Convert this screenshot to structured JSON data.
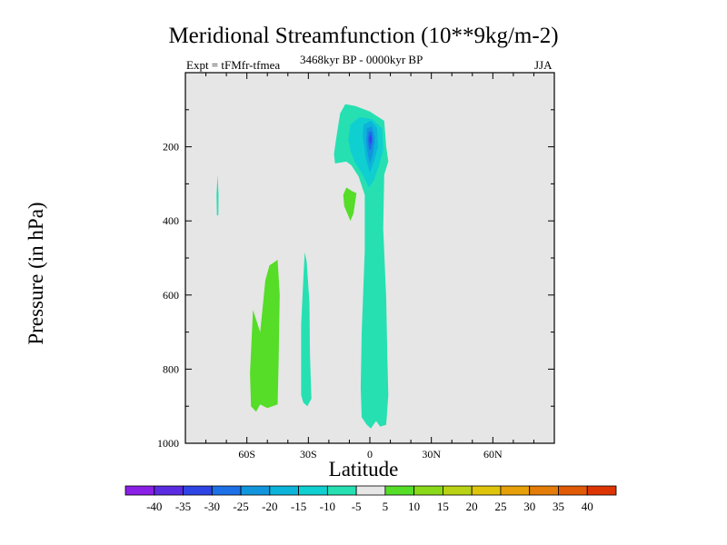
{
  "chart_data": {
    "type": "contour",
    "title": "Meridional Streamfunction (10**9kg/m-2)",
    "experiment_label": "Expt = tFMfr-tfmea",
    "time_range": "3468kyr BP - 0000kyr BP",
    "season": "JJA",
    "xlabel": "Latitude",
    "ylabel": "Pressure (in hPa)",
    "xlim": [
      -90,
      90
    ],
    "ylim": [
      1000,
      0
    ],
    "x_ticks": [
      {
        "value": -60,
        "label": "60S"
      },
      {
        "value": -30,
        "label": "30S"
      },
      {
        "value": 0,
        "label": "0"
      },
      {
        "value": 30,
        "label": "30N"
      },
      {
        "value": 60,
        "label": "60N"
      }
    ],
    "y_ticks": [
      {
        "value": 200,
        "label": "200"
      },
      {
        "value": 400,
        "label": "400"
      },
      {
        "value": 600,
        "label": "600"
      },
      {
        "value": 800,
        "label": "800"
      },
      {
        "value": 1000,
        "label": "1000"
      }
    ],
    "colorbar": {
      "levels": [
        -40,
        -35,
        -30,
        -25,
        -20,
        -15,
        -10,
        -5,
        5,
        10,
        15,
        20,
        25,
        30,
        35,
        40
      ],
      "labels": [
        "-40",
        "-35",
        "-30",
        "-25",
        "-20",
        "-15",
        "-10",
        "-5",
        "5",
        "10",
        "15",
        "20",
        "25",
        "30",
        "35",
        "40"
      ],
      "colors": [
        "#8a1fe6",
        "#5a2be0",
        "#2f44e4",
        "#1d70e6",
        "#1196de",
        "#0cb4d9",
        "#10cfd0",
        "#26e0b2",
        "#e6e6e6",
        "#55dd28",
        "#8ad81a",
        "#bad215",
        "#dfc40c",
        "#e6a10a",
        "#e37c08",
        "#e15a06",
        "#dd3404"
      ]
    },
    "regions": [
      {
        "name": "sh-positive-lower",
        "level": "5 to 10",
        "color": "#55dd28",
        "points": [
          [
            -55.5,
            915
          ],
          [
            -58,
            900
          ],
          [
            -58.5,
            810
          ],
          [
            -57,
            640
          ],
          [
            -53.5,
            700
          ],
          [
            -51,
            560
          ],
          [
            -49,
            520
          ],
          [
            -45,
            505
          ],
          [
            -44,
            600
          ],
          [
            -44.5,
            780
          ],
          [
            -45,
            895
          ],
          [
            -50,
            905
          ],
          [
            -53.5,
            895
          ]
        ]
      },
      {
        "name": "sh-negative-column",
        "level": "-10 to -5",
        "color": "#26e0b2",
        "points": [
          [
            -30.5,
            900
          ],
          [
            -32.5,
            890
          ],
          [
            -33.5,
            870
          ],
          [
            -33.5,
            680
          ],
          [
            -32.5,
            560
          ],
          [
            -31.8,
            485
          ],
          [
            -30.8,
            510
          ],
          [
            -29.5,
            620
          ],
          [
            -29.2,
            760
          ],
          [
            -28.5,
            880
          ]
        ]
      },
      {
        "name": "polar-negative-sliver",
        "level": "-10 to -5",
        "color": "#26e0b2",
        "points": [
          [
            -74.6,
            385
          ],
          [
            -74.8,
            330
          ],
          [
            -74.3,
            275
          ],
          [
            -73.8,
            330
          ],
          [
            -73.9,
            385
          ]
        ]
      },
      {
        "name": "tropical-positive-blob",
        "level": "5 to 10",
        "color": "#55dd28",
        "points": [
          [
            -12.5,
            360
          ],
          [
            -13,
            330
          ],
          [
            -11.5,
            310
          ],
          [
            -8.5,
            320
          ],
          [
            -6.5,
            325
          ],
          [
            -8,
            380
          ],
          [
            -9.5,
            400
          ]
        ]
      },
      {
        "name": "equatorial-negative-outer",
        "level": "-10 to -5",
        "color": "#26e0b2",
        "points": [
          [
            -17,
            245
          ],
          [
            -17.5,
            220
          ],
          [
            -16.5,
            180
          ],
          [
            -14.5,
            110
          ],
          [
            -12,
            85
          ],
          [
            -7,
            90
          ],
          [
            0,
            105
          ],
          [
            7,
            130
          ],
          [
            8,
            200
          ],
          [
            9,
            240
          ],
          [
            7,
            275
          ],
          [
            6.5,
            420
          ],
          [
            8,
            610
          ],
          [
            8.5,
            760
          ],
          [
            9,
            870
          ],
          [
            8,
            950
          ],
          [
            5,
            955
          ],
          [
            3,
            940
          ],
          [
            0.5,
            960
          ],
          [
            -1.5,
            950
          ],
          [
            -4,
            930
          ],
          [
            -4.5,
            850
          ],
          [
            -4,
            700
          ],
          [
            -2.5,
            480
          ],
          [
            -2.5,
            330
          ],
          [
            -5.5,
            280
          ],
          [
            -9,
            250
          ],
          [
            -11.5,
            240
          ]
        ]
      },
      {
        "name": "equatorial-negative-inner",
        "level": "-15 to -10",
        "color": "#10cfd0",
        "points": [
          [
            -10.5,
            180
          ],
          [
            -9.5,
            140
          ],
          [
            -5,
            120
          ],
          [
            1,
            125
          ],
          [
            6,
            150
          ],
          [
            6.5,
            210
          ],
          [
            4.5,
            250
          ],
          [
            2,
            290
          ],
          [
            -0.5,
            310
          ],
          [
            -3.5,
            275
          ],
          [
            -7.5,
            240
          ],
          [
            -9.5,
            210
          ]
        ]
      },
      {
        "name": "upper-core-level-20",
        "level": "-20 to -15",
        "color": "#0cb4d9",
        "points": [
          [
            -3.5,
            170
          ],
          [
            -3,
            140
          ],
          [
            0.5,
            130
          ],
          [
            3.5,
            150
          ],
          [
            4,
            200
          ],
          [
            2,
            240
          ],
          [
            0,
            270
          ],
          [
            -2,
            230
          ]
        ]
      },
      {
        "name": "upper-core-level-25",
        "level": "-25 to -20",
        "color": "#1196de",
        "points": [
          [
            -1.8,
            185
          ],
          [
            -1.5,
            150
          ],
          [
            1,
            145
          ],
          [
            2.5,
            175
          ],
          [
            1.5,
            220
          ],
          [
            0,
            245
          ],
          [
            -1.2,
            215
          ]
        ]
      },
      {
        "name": "upper-core-level-30",
        "level": "-30 to -25",
        "color": "#1d70e6",
        "points": [
          [
            -1,
            180
          ],
          [
            -0.5,
            158
          ],
          [
            1,
            160
          ],
          [
            1.5,
            185
          ],
          [
            0.5,
            210
          ],
          [
            -0.5,
            205
          ]
        ]
      },
      {
        "name": "upper-core-level-35",
        "level": "-35 to -30",
        "color": "#2f44e4",
        "points": [
          [
            -0.3,
            180
          ],
          [
            0.3,
            165
          ],
          [
            0.9,
            178
          ],
          [
            0.3,
            195
          ]
        ]
      }
    ]
  }
}
